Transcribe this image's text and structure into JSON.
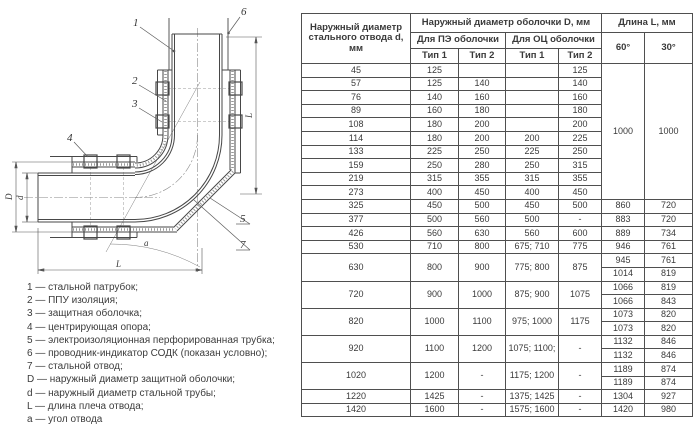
{
  "diagram": {
    "callouts": {
      "c1": "1",
      "c2": "2",
      "c3": "3",
      "c4": "4",
      "c5": "5",
      "c6": "6",
      "c7": "7"
    },
    "dims": {
      "outer_diameter": "D",
      "steel_diameter": "d",
      "length_bottom": "L",
      "length_right": "L",
      "angle": "a"
    }
  },
  "legend": {
    "items": [
      "1 — стальной патрубок;",
      "2 — ППУ изоляция;",
      "3 — защитная оболочка;",
      "4 — центрирующая опора;",
      "5 — электроизоляционная перфорированная трубка;",
      "6 — проводник-индикатор СОДК (показан условно);",
      "7 — стальной отвод;",
      "D — наружный диаметр защитной оболочки;",
      "d — наружный диаметр стальной трубы;",
      "L — длина плеча отвода;",
      "a — угол отвода"
    ]
  },
  "table": {
    "header": {
      "col_d": "Наружный диаметр стального отвода d, мм",
      "group_D": "Наружный диаметр оболочки D, мм",
      "group_L": "Длина L, мм",
      "pe": "Для ПЭ оболочки",
      "oc": "Для ОЦ оболочки",
      "pe_type1": "Тип 1",
      "pe_type2": "Тип 2",
      "oc_type1": "Тип 1",
      "oc_type2": "Тип 2",
      "deg60": "60°",
      "deg30": "30°"
    },
    "rows": [
      {
        "cells": [
          {
            "t": "45"
          },
          {
            "t": "125"
          },
          {
            "t": ""
          },
          {
            "t": ""
          },
          {
            "t": "125"
          },
          {
            "t": "1000",
            "rs": 10
          },
          {
            "t": "1000",
            "rs": 10
          }
        ]
      },
      {
        "cells": [
          {
            "t": "57"
          },
          {
            "t": "125"
          },
          {
            "t": "140"
          },
          {
            "t": ""
          },
          {
            "t": "140"
          }
        ]
      },
      {
        "cells": [
          {
            "t": "76"
          },
          {
            "t": "140"
          },
          {
            "t": "160"
          },
          {
            "t": ""
          },
          {
            "t": "160"
          }
        ]
      },
      {
        "cells": [
          {
            "t": "89"
          },
          {
            "t": "160"
          },
          {
            "t": "180"
          },
          {
            "t": ""
          },
          {
            "t": "180"
          }
        ]
      },
      {
        "cells": [
          {
            "t": "108"
          },
          {
            "t": "180"
          },
          {
            "t": "200"
          },
          {
            "t": ""
          },
          {
            "t": "200"
          }
        ]
      },
      {
        "cells": [
          {
            "t": "114"
          },
          {
            "t": "180"
          },
          {
            "t": "200"
          },
          {
            "t": "200"
          },
          {
            "t": "225"
          }
        ]
      },
      {
        "cells": [
          {
            "t": "133"
          },
          {
            "t": "225"
          },
          {
            "t": "250"
          },
          {
            "t": "225"
          },
          {
            "t": "250"
          }
        ]
      },
      {
        "cells": [
          {
            "t": "159"
          },
          {
            "t": "250"
          },
          {
            "t": "280"
          },
          {
            "t": "250"
          },
          {
            "t": "315"
          }
        ]
      },
      {
        "cells": [
          {
            "t": "219"
          },
          {
            "t": "315"
          },
          {
            "t": "355"
          },
          {
            "t": "315"
          },
          {
            "t": "355"
          }
        ]
      },
      {
        "cells": [
          {
            "t": "273"
          },
          {
            "t": "400"
          },
          {
            "t": "450"
          },
          {
            "t": "400"
          },
          {
            "t": "450"
          }
        ]
      },
      {
        "cells": [
          {
            "t": "325"
          },
          {
            "t": "450"
          },
          {
            "t": "500"
          },
          {
            "t": "450"
          },
          {
            "t": "500"
          },
          {
            "t": "860"
          },
          {
            "t": "720"
          }
        ]
      },
      {
        "cells": [
          {
            "t": "377"
          },
          {
            "t": "500"
          },
          {
            "t": "560"
          },
          {
            "t": "500"
          },
          {
            "t": "-"
          },
          {
            "t": "883"
          },
          {
            "t": "720"
          }
        ]
      },
      {
        "cells": [
          {
            "t": "426"
          },
          {
            "t": "560"
          },
          {
            "t": "630"
          },
          {
            "t": "560"
          },
          {
            "t": "600"
          },
          {
            "t": "889"
          },
          {
            "t": "734"
          }
        ]
      },
      {
        "cells": [
          {
            "t": "530"
          },
          {
            "t": "710"
          },
          {
            "t": "800"
          },
          {
            "t": "675; 710"
          },
          {
            "t": "775"
          },
          {
            "t": "946"
          },
          {
            "t": "761"
          }
        ]
      },
      {
        "cells": [
          {
            "t": "630",
            "rs": 2
          },
          {
            "t": "800",
            "rs": 2
          },
          {
            "t": "900",
            "rs": 2
          },
          {
            "t": "775; 800",
            "rs": 2
          },
          {
            "t": "875",
            "rs": 2
          },
          {
            "t": "945"
          },
          {
            "t": "761"
          }
        ]
      },
      {
        "cells": [
          {
            "t": "1014"
          },
          {
            "t": "819"
          }
        ]
      },
      {
        "cells": [
          {
            "t": "720",
            "rs": 2
          },
          {
            "t": "900",
            "rs": 2
          },
          {
            "t": "1000",
            "rs": 2
          },
          {
            "t": "875; 900",
            "rs": 2
          },
          {
            "t": "1075",
            "rs": 2
          },
          {
            "t": "1066"
          },
          {
            "t": "819"
          }
        ]
      },
      {
        "cells": [
          {
            "t": "1066"
          },
          {
            "t": "843"
          }
        ]
      },
      {
        "cells": [
          {
            "t": "820",
            "rs": 2
          },
          {
            "t": "1000",
            "rs": 2
          },
          {
            "t": "1100",
            "rs": 2
          },
          {
            "t": "975; 1000",
            "rs": 2
          },
          {
            "t": "1175",
            "rs": 2
          },
          {
            "t": "1073"
          },
          {
            "t": "820"
          }
        ]
      },
      {
        "cells": [
          {
            "t": "1073"
          },
          {
            "t": "820"
          }
        ]
      },
      {
        "cells": [
          {
            "t": "920",
            "rs": 2
          },
          {
            "t": "1100",
            "rs": 2
          },
          {
            "t": "1200",
            "rs": 2
          },
          {
            "t": "1075; 1100;",
            "rs": 2
          },
          {
            "t": "-",
            "rs": 2
          },
          {
            "t": "1132"
          },
          {
            "t": "846"
          }
        ]
      },
      {
        "cells": [
          {
            "t": "1132"
          },
          {
            "t": "846"
          }
        ]
      },
      {
        "cells": [
          {
            "t": "1020",
            "rs": 2
          },
          {
            "t": "1200",
            "rs": 2
          },
          {
            "t": "-",
            "rs": 2
          },
          {
            "t": "1175; 1200",
            "rs": 2
          },
          {
            "t": "-",
            "rs": 2
          },
          {
            "t": "1189"
          },
          {
            "t": "874"
          }
        ]
      },
      {
        "cells": [
          {
            "t": "1189"
          },
          {
            "t": "874"
          }
        ]
      },
      {
        "cells": [
          {
            "t": "1220"
          },
          {
            "t": "1425"
          },
          {
            "t": "-"
          },
          {
            "t": "1375; 1425"
          },
          {
            "t": "-"
          },
          {
            "t": "1304"
          },
          {
            "t": "927"
          }
        ]
      },
      {
        "cells": [
          {
            "t": "1420"
          },
          {
            "t": "1600"
          },
          {
            "t": "-"
          },
          {
            "t": "1575; 1600"
          },
          {
            "t": "-"
          },
          {
            "t": "1420"
          },
          {
            "t": "980"
          }
        ]
      }
    ]
  }
}
